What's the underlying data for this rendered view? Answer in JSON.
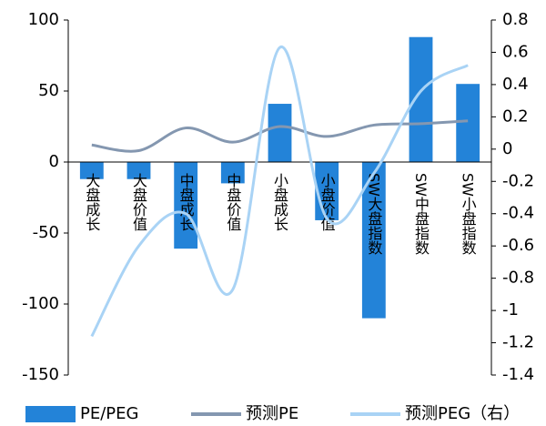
{
  "chart_data": {
    "type": "bar-line",
    "categories": [
      "大盘成长",
      "大盘价值",
      "中盘成长",
      "中盘价值",
      "小盘成长",
      "小盘价值",
      "SW大盘指数",
      "SW中盘指数",
      "SW小盘指数"
    ],
    "series": [
      {
        "name": "PE/PEG",
        "type": "bar",
        "color": "#2383d8",
        "values": [
          -12,
          -12,
          -61,
          -15,
          41,
          -41,
          -110,
          88,
          55
        ]
      },
      {
        "name": "预测PE",
        "type": "line",
        "color": "#8497b0",
        "values": [
          12,
          8,
          24,
          14,
          25,
          18,
          26,
          27,
          29
        ]
      },
      {
        "name": "预测PEG（右）",
        "type": "line",
        "axis": "y2",
        "color": "#a9d3f5",
        "values": [
          -1.16,
          -0.6,
          -0.4,
          -0.87,
          0.63,
          -0.43,
          -0.15,
          0.36,
          0.52
        ]
      }
    ],
    "ylim": [
      -150,
      100
    ],
    "yticks": [
      -150,
      -100,
      -50,
      0,
      50,
      100
    ],
    "y2lim": [
      -1.4,
      0.8
    ],
    "y2ticks": [
      -1.4,
      -1.2,
      -1,
      -0.8,
      -0.6,
      -0.4,
      -0.2,
      0,
      0.2,
      0.4,
      0.6,
      0.8
    ]
  }
}
